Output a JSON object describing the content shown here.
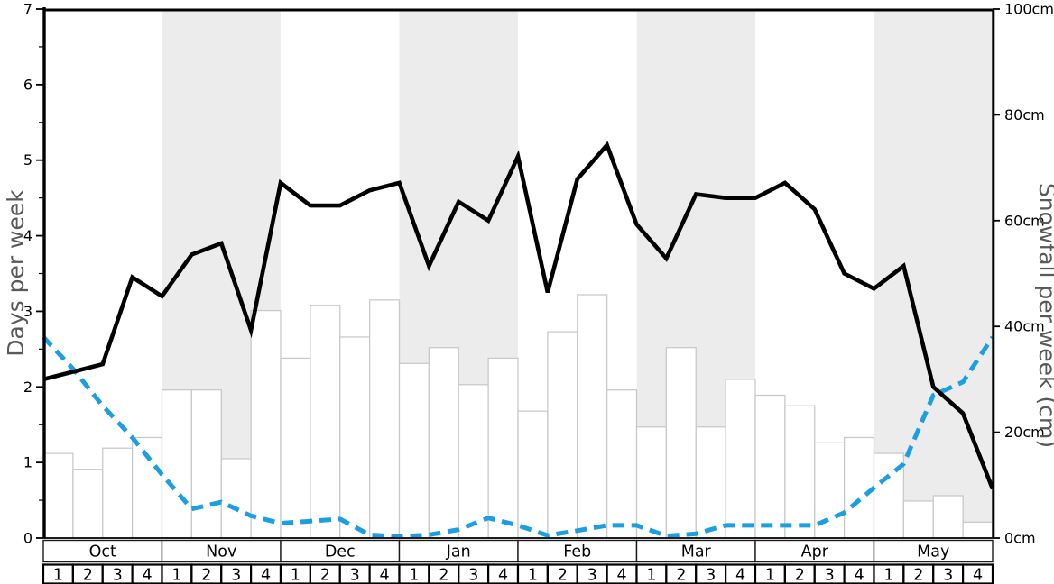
{
  "chart_data": {
    "type": "line+bar",
    "title": "",
    "x_description": "33 weekly points spanning start of Oct week 1 through end of May week 4; bars cover each of the 32 week cells",
    "months": [
      {
        "label": "Oct",
        "shaded": false
      },
      {
        "label": "Nov",
        "shaded": true
      },
      {
        "label": "Dec",
        "shaded": false
      },
      {
        "label": "Jan",
        "shaded": true
      },
      {
        "label": "Feb",
        "shaded": false
      },
      {
        "label": "Mar",
        "shaded": true
      },
      {
        "label": "Apr",
        "shaded": false
      },
      {
        "label": "May",
        "shaded": true
      }
    ],
    "week_labels": [
      "1",
      "2",
      "3",
      "4"
    ],
    "left_axis": {
      "label": "Days per week",
      "min": 0,
      "max": 7,
      "major_ticks": [
        0,
        1,
        2,
        3,
        4,
        5,
        6,
        7
      ],
      "minor_step": 0.5
    },
    "right_axis": {
      "label": "Snowfall per week (cm)",
      "min": 0,
      "max": 100,
      "major_tick_values": [
        0,
        20,
        40,
        60,
        80,
        100
      ],
      "tick_labels": [
        "0cm",
        "20cm",
        "40cm",
        "60cm",
        "80cm",
        "100cm"
      ]
    },
    "series": [
      {
        "name": "days_per_week_line",
        "type": "line",
        "axis": "left",
        "color": "#000000",
        "dash": "solid",
        "values": [
          2.1,
          2.2,
          2.3,
          3.45,
          3.2,
          3.75,
          3.9,
          2.75,
          4.7,
          4.4,
          4.4,
          4.6,
          4.7,
          3.6,
          4.45,
          4.2,
          5.05,
          3.25,
          4.75,
          5.2,
          4.15,
          3.7,
          4.55,
          4.5,
          4.5,
          4.7,
          4.35,
          3.5,
          3.3,
          3.6,
          2.0,
          1.65,
          0.65
        ]
      },
      {
        "name": "snowfall_dashed_line",
        "type": "line",
        "axis": "right",
        "color": "#1C9EE3",
        "dash": "dashed",
        "values": [
          38,
          32,
          25,
          19,
          12,
          5.5,
          6.8,
          4.2,
          2.8,
          3.2,
          3.6,
          0.6,
          0.3,
          0.6,
          1.6,
          3.8,
          2.4,
          0.5,
          1.4,
          2.4,
          2.4,
          0.4,
          0.8,
          2.4,
          2.4,
          2.4,
          2.4,
          4.8,
          9.5,
          14,
          27,
          29.5,
          38
        ]
      },
      {
        "name": "snowfall_bars",
        "type": "bar",
        "axis": "right",
        "fill": "#FFFFFF",
        "stroke": "#C9C9C9",
        "values": [
          16,
          13,
          17,
          19,
          28,
          28,
          15,
          43,
          34,
          44,
          38,
          45,
          33,
          36,
          29,
          34,
          24,
          39,
          46,
          28,
          21,
          36,
          21,
          30,
          27,
          25,
          18,
          19,
          16,
          7,
          8,
          3
        ]
      }
    ],
    "colors": {
      "band_shaded": "#ECECEC",
      "band_plain": "#FFFFFF",
      "axis_title_gray": "#595959",
      "tick_label_black": "#000000",
      "table_border": "#1a1a1a",
      "spine_black": "#000000"
    }
  }
}
